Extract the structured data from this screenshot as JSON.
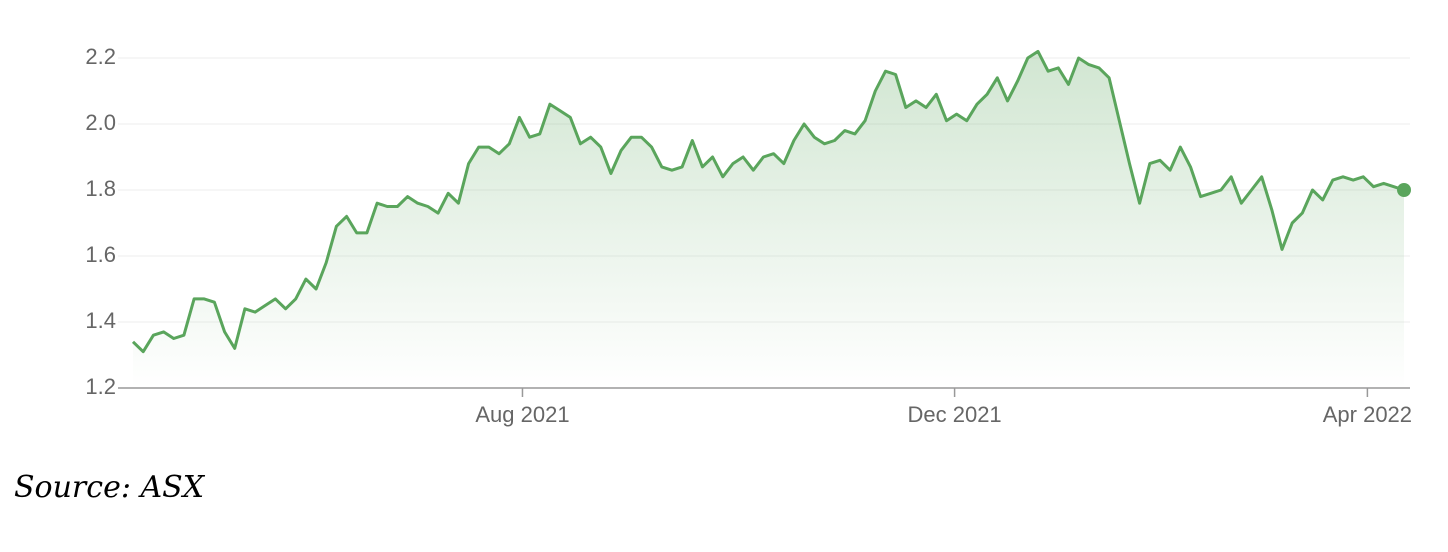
{
  "chart_data": {
    "type": "area-line",
    "color": "#5aa55c",
    "grid": true,
    "source": "Source: ASX",
    "values": [
      1.34,
      1.31,
      1.36,
      1.37,
      1.35,
      1.36,
      1.47,
      1.47,
      1.46,
      1.37,
      1.32,
      1.44,
      1.43,
      1.45,
      1.47,
      1.44,
      1.47,
      1.53,
      1.5,
      1.58,
      1.69,
      1.72,
      1.67,
      1.67,
      1.76,
      1.75,
      1.75,
      1.78,
      1.76,
      1.75,
      1.73,
      1.79,
      1.76,
      1.88,
      1.93,
      1.93,
      1.91,
      1.94,
      2.02,
      1.96,
      1.97,
      2.06,
      2.04,
      2.02,
      1.94,
      1.96,
      1.93,
      1.85,
      1.92,
      1.96,
      1.96,
      1.93,
      1.87,
      1.86,
      1.87,
      1.95,
      1.87,
      1.9,
      1.84,
      1.88,
      1.9,
      1.86,
      1.9,
      1.91,
      1.88,
      1.95,
      2.0,
      1.96,
      1.94,
      1.95,
      1.98,
      1.97,
      2.01,
      2.1,
      2.16,
      2.15,
      2.05,
      2.07,
      2.05,
      2.09,
      2.01,
      2.03,
      2.01,
      2.06,
      2.09,
      2.14,
      2.07,
      2.13,
      2.2,
      2.22,
      2.16,
      2.17,
      2.12,
      2.2,
      2.18,
      2.17,
      2.14,
      2.01,
      1.88,
      1.76,
      1.88,
      1.89,
      1.86,
      1.93,
      1.87,
      1.78,
      1.79,
      1.8,
      1.84,
      1.76,
      1.8,
      1.84,
      1.74,
      1.62,
      1.7,
      1.73,
      1.8,
      1.77,
      1.83,
      1.84,
      1.83,
      1.84,
      1.81,
      1.82,
      1.81,
      1.8
    ],
    "xlim": [
      -1.48,
      125.59
    ],
    "xticks": [
      {
        "value": 38.3,
        "label": "Aug 2021"
      },
      {
        "value": 80.8,
        "label": "Dec 2021"
      },
      {
        "value": 121.4,
        "label": "Apr 2022"
      }
    ],
    "ylim": [
      1.2,
      2.2
    ],
    "yticks": [
      1.2,
      1.4,
      1.6,
      1.8,
      {
        "value": 2,
        "label": "2.0"
      },
      2.2
    ]
  }
}
